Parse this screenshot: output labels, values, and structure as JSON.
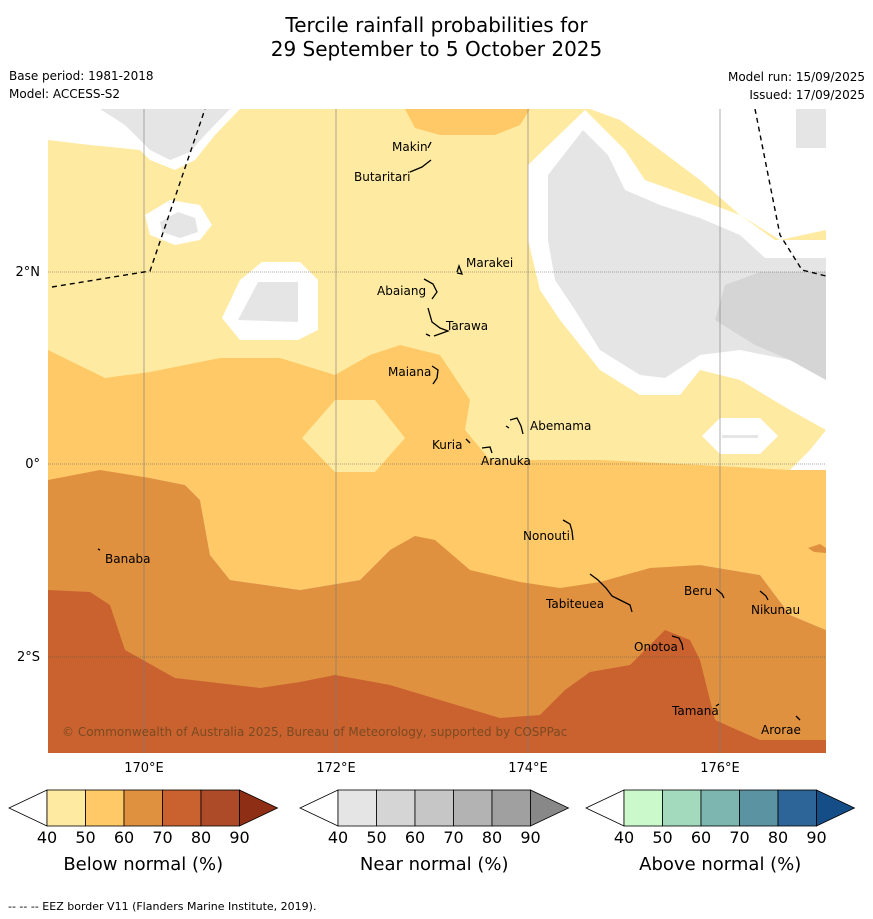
{
  "title_line1": "Tercile rainfall probabilities for",
  "title_line2": "29 September to 5 October 2025",
  "base_period": "Base period: 1981-2018",
  "model": "Model: ACCESS-S2",
  "model_run": "Model run: 15/09/2025",
  "issued": "Issued: 17/09/2025",
  "copyright": "© Commonwealth of Australia 2025, Bureau of Meteorology, supported by COSPPac",
  "lon_labels": [
    "170°E",
    "172°E",
    "174°E",
    "176°E"
  ],
  "lat_labels": [
    "2°N",
    "0°",
    "2°S"
  ],
  "places": [
    {
      "name": "Makin"
    },
    {
      "name": "Butaritari"
    },
    {
      "name": "Marakei"
    },
    {
      "name": "Abaiang"
    },
    {
      "name": "Tarawa"
    },
    {
      "name": "Maiana"
    },
    {
      "name": "Abemama"
    },
    {
      "name": "Kuria"
    },
    {
      "name": "Aranuka"
    },
    {
      "name": "Banaba"
    },
    {
      "name": "Nonouti"
    },
    {
      "name": "Tabiteuea"
    },
    {
      "name": "Beru"
    },
    {
      "name": "Nikunau"
    },
    {
      "name": "Onotoa"
    },
    {
      "name": "Tamana"
    },
    {
      "name": "Arorae"
    }
  ],
  "colorbars": [
    {
      "label": "Below normal (%)",
      "ticks": [
        "40",
        "50",
        "60",
        "70",
        "80",
        "90"
      ],
      "colors": [
        "#ffffff",
        "#feeaa0",
        "#fec966",
        "#e09140",
        "#ca6230",
        "#ad4b28",
        "#8e2e15"
      ]
    },
    {
      "label": "Near normal (%)",
      "ticks": [
        "40",
        "50",
        "60",
        "70",
        "80",
        "90"
      ],
      "colors": [
        "#ffffff",
        "#e5e5e5",
        "#d5d5d5",
        "#c6c6c6",
        "#b3b3b3",
        "#a0a0a0",
        "#888888"
      ]
    },
    {
      "label": "Above normal (%)",
      "ticks": [
        "40",
        "50",
        "60",
        "70",
        "80",
        "90"
      ],
      "colors": [
        "#ffffff",
        "#cbf9cc",
        "#a3d9bd",
        "#7db6b0",
        "#5b93a2",
        "#2e6598",
        "#154d86"
      ]
    }
  ],
  "colors": {
    "below_40_50": "#feeaa0",
    "below_50_60": "#fec966",
    "below_60_70": "#e09140",
    "below_70_80": "#ca6230",
    "near_40_50": "#e5e5e5",
    "near_50_60": "#d5d5d5"
  },
  "footer": "--  --  -- EEZ border V11 (Flanders Marine Institute, 2019)."
}
